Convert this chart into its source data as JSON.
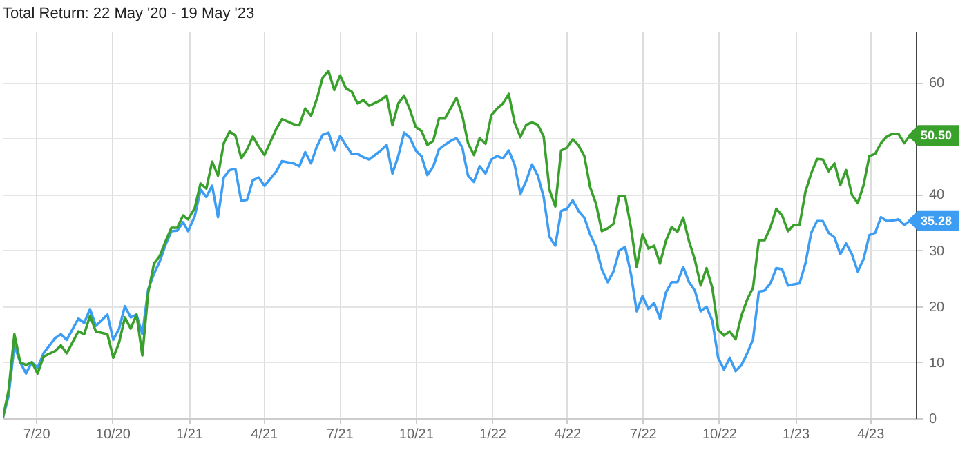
{
  "chart_data": {
    "type": "line",
    "title": "Total Return: 22 May '20 - 19 May '23",
    "x": [
      "2020-05-22",
      "2020-05-29",
      "2020-06-05",
      "2020-06-12",
      "2020-06-19",
      "2020-06-26",
      "2020-07-03",
      "2020-07-10",
      "2020-07-24",
      "2020-07-31",
      "2020-08-07",
      "2020-08-21",
      "2020-08-28",
      "2020-09-04",
      "2020-09-11",
      "2020-09-25",
      "2020-10-02",
      "2020-10-09",
      "2020-10-16",
      "2020-10-23",
      "2020-10-30",
      "2020-11-06",
      "2020-11-13",
      "2020-11-20",
      "2020-11-27",
      "2020-12-04",
      "2020-12-11",
      "2020-12-18",
      "2020-12-25",
      "2020-12-31",
      "2021-01-08",
      "2021-01-15",
      "2021-01-22",
      "2021-01-29",
      "2021-02-05",
      "2021-02-12",
      "2021-02-19",
      "2021-02-26",
      "2021-03-05",
      "2021-03-12",
      "2021-03-19",
      "2021-03-26",
      "2021-04-02",
      "2021-04-16",
      "2021-04-23",
      "2021-05-07",
      "2021-05-14",
      "2021-05-21",
      "2021-05-28",
      "2021-06-04",
      "2021-06-11",
      "2021-06-18",
      "2021-06-25",
      "2021-07-02",
      "2021-07-09",
      "2021-07-16",
      "2021-07-23",
      "2021-07-30",
      "2021-08-06",
      "2021-08-20",
      "2021-08-27",
      "2021-09-03",
      "2021-09-10",
      "2021-09-17",
      "2021-09-24",
      "2021-10-01",
      "2021-10-08",
      "2021-10-15",
      "2021-10-22",
      "2021-10-29",
      "2021-11-05",
      "2021-11-12",
      "2021-11-19",
      "2021-11-26",
      "2021-12-03",
      "2021-12-10",
      "2021-12-17",
      "2021-12-24",
      "2021-12-31",
      "2022-01-07",
      "2022-01-14",
      "2022-01-21",
      "2022-01-28",
      "2022-02-04",
      "2022-02-11",
      "2022-02-18",
      "2022-02-25",
      "2022-03-04",
      "2022-03-11",
      "2022-03-18",
      "2022-03-25",
      "2022-04-01",
      "2022-04-08",
      "2022-04-15",
      "2022-04-22",
      "2022-04-29",
      "2022-05-06",
      "2022-05-13",
      "2022-05-20",
      "2022-05-27",
      "2022-06-03",
      "2022-06-10",
      "2022-06-17",
      "2022-06-24",
      "2022-07-01",
      "2022-07-08",
      "2022-07-15",
      "2022-07-22",
      "2022-07-29",
      "2022-08-05",
      "2022-08-12",
      "2022-08-19",
      "2022-08-26",
      "2022-09-02",
      "2022-09-09",
      "2022-09-16",
      "2022-09-23",
      "2022-09-30",
      "2022-10-07",
      "2022-10-14",
      "2022-10-21",
      "2022-10-28",
      "2022-11-04",
      "2022-11-11",
      "2022-11-18",
      "2022-11-25",
      "2022-12-02",
      "2022-12-09",
      "2022-12-16",
      "2022-12-23",
      "2022-12-30",
      "2023-01-06",
      "2023-01-13",
      "2023-01-20",
      "2023-01-27",
      "2023-02-03",
      "2023-02-10",
      "2023-02-17",
      "2023-02-24",
      "2023-03-03",
      "2023-03-10",
      "2023-03-17",
      "2023-03-24",
      "2023-03-31",
      "2023-04-07",
      "2023-04-14",
      "2023-04-21",
      "2023-04-28",
      "2023-05-05",
      "2023-05-12",
      "2023-05-19"
    ],
    "series": [
      {
        "color": "#3d9df3",
        "values": [
          0,
          4,
          13,
          10,
          8,
          10,
          9,
          11.6,
          14.3,
          15,
          14,
          17.8,
          17,
          19.5,
          16.5,
          18.5,
          14,
          16,
          20,
          18,
          18.5,
          15,
          23,
          25.8,
          28,
          31,
          33.4,
          33.5,
          35,
          33.4,
          36,
          40.8,
          39.5,
          41.5,
          35.9,
          43,
          44.3,
          44.5,
          38.8,
          39,
          42.5,
          43,
          41.5,
          44,
          45.9,
          45.5,
          45,
          47.5,
          45.5,
          48.5,
          50.6,
          51,
          47.8,
          50.4,
          48.7,
          47.2,
          47.2,
          46.6,
          46.2,
          47.8,
          48.8,
          43.7,
          46.8,
          51,
          50.1,
          47.8,
          46.8,
          43.4,
          44.9,
          48,
          48.8,
          49.5,
          50,
          48.4,
          43.3,
          42.2,
          45,
          43.7,
          46.2,
          46.8,
          46.4,
          47.8,
          45.3,
          40,
          42.4,
          45.3,
          43.3,
          39.5,
          32.4,
          30.8,
          37,
          37.4,
          38.9,
          37,
          35.8,
          32.8,
          30.6,
          26.6,
          24.3,
          26.2,
          29.9,
          30.6,
          25.8,
          19.1,
          21.8,
          19.5,
          20.6,
          17.8,
          22.4,
          24.3,
          24.3,
          27,
          24.3,
          22.8,
          19.1,
          19.9,
          17.4,
          10.8,
          8.7,
          10.8,
          8.4,
          9.5,
          11.6,
          14.1,
          22.6,
          22.8,
          24.1,
          26.8,
          26.6,
          23.7,
          23.9,
          24.1,
          27.6,
          33.1,
          35.2,
          35.2,
          33.1,
          32.3,
          29.3,
          31.2,
          29.3,
          26.2,
          28.4,
          32.7,
          33.1,
          35.9,
          35.2,
          35.3,
          35.5,
          34.5,
          35.28
        ]
      },
      {
        "color": "#3aa02c",
        "values": [
          0,
          5,
          15,
          10,
          9.5,
          10,
          8,
          11,
          12,
          13,
          11.6,
          15.5,
          15,
          18.3,
          15.5,
          15,
          10.8,
          13.5,
          18,
          16,
          18.5,
          11.2,
          22.4,
          27.6,
          29,
          31.6,
          34,
          34,
          36.2,
          35.5,
          37.5,
          41.9,
          41,
          45.8,
          43.3,
          49.1,
          51.2,
          50.5,
          46.4,
          48,
          50.3,
          48.5,
          47,
          51.6,
          53.4,
          52.5,
          52.3,
          55.3,
          54,
          57,
          60.8,
          62,
          58.6,
          61.2,
          58.9,
          58.3,
          56.2,
          56.8,
          55.8,
          56.8,
          57.6,
          52.3,
          56.2,
          57.6,
          55.1,
          52,
          51.3,
          48.8,
          49.5,
          53.5,
          53.5,
          55.3,
          57.2,
          54.1,
          49.1,
          47,
          50,
          49,
          54.1,
          55.3,
          56.2,
          57.9,
          52.8,
          50.2,
          52.4,
          52.8,
          52.4,
          50.3,
          40.8,
          37.8,
          47.8,
          48.3,
          49.8,
          48.7,
          46.8,
          41.2,
          38.3,
          33.4,
          33.9,
          34.7,
          39.7,
          39.7,
          34.1,
          27,
          32.8,
          30.3,
          30.8,
          27.6,
          31.6,
          34.1,
          33.3,
          35.8,
          31.6,
          28.3,
          23.7,
          26.8,
          23.3,
          15.8,
          14.8,
          15.5,
          14.1,
          18.3,
          21.2,
          23.3,
          31.8,
          31.8,
          34.1,
          37.4,
          36.2,
          33.4,
          34.5,
          34.5,
          40.4,
          43.7,
          46.3,
          46.2,
          44.1,
          45.5,
          41.6,
          44.3,
          39.9,
          38.4,
          41.6,
          46.8,
          47.2,
          49.1,
          50.3,
          50.8,
          50.8,
          49.1,
          50.5
        ]
      }
    ],
    "xlim": [
      "2020-05-22",
      "2023-05-26"
    ],
    "xticks": [
      {
        "value": "2020-07-01",
        "label": "7/20"
      },
      {
        "value": "2020-10-01",
        "label": "10/20"
      },
      {
        "value": "2021-01-01",
        "label": "1/21"
      },
      {
        "value": "2021-04-01",
        "label": "4/21"
      },
      {
        "value": "2021-07-01",
        "label": "7/21"
      },
      {
        "value": "2021-10-01",
        "label": "10/21"
      },
      {
        "value": "2022-01-01",
        "label": "1/22"
      },
      {
        "value": "2022-04-01",
        "label": "4/22"
      },
      {
        "value": "2022-07-01",
        "label": "7/22"
      },
      {
        "value": "2022-10-01",
        "label": "10/22"
      },
      {
        "value": "2023-01-01",
        "label": "1/23"
      },
      {
        "value": "2023-04-01",
        "label": "4/23"
      }
    ],
    "ylim": [
      0,
      69
    ],
    "yticks": [
      0,
      10,
      20,
      30,
      40,
      {
        "value": 50,
        "label": null
      },
      60
    ],
    "grid": true,
    "annotations": [
      {
        "text": "50.50",
        "x": "2023-05-19",
        "y": 50.5
      },
      {
        "text": "35.28",
        "x": "2023-05-19",
        "y": 35.28
      }
    ]
  }
}
